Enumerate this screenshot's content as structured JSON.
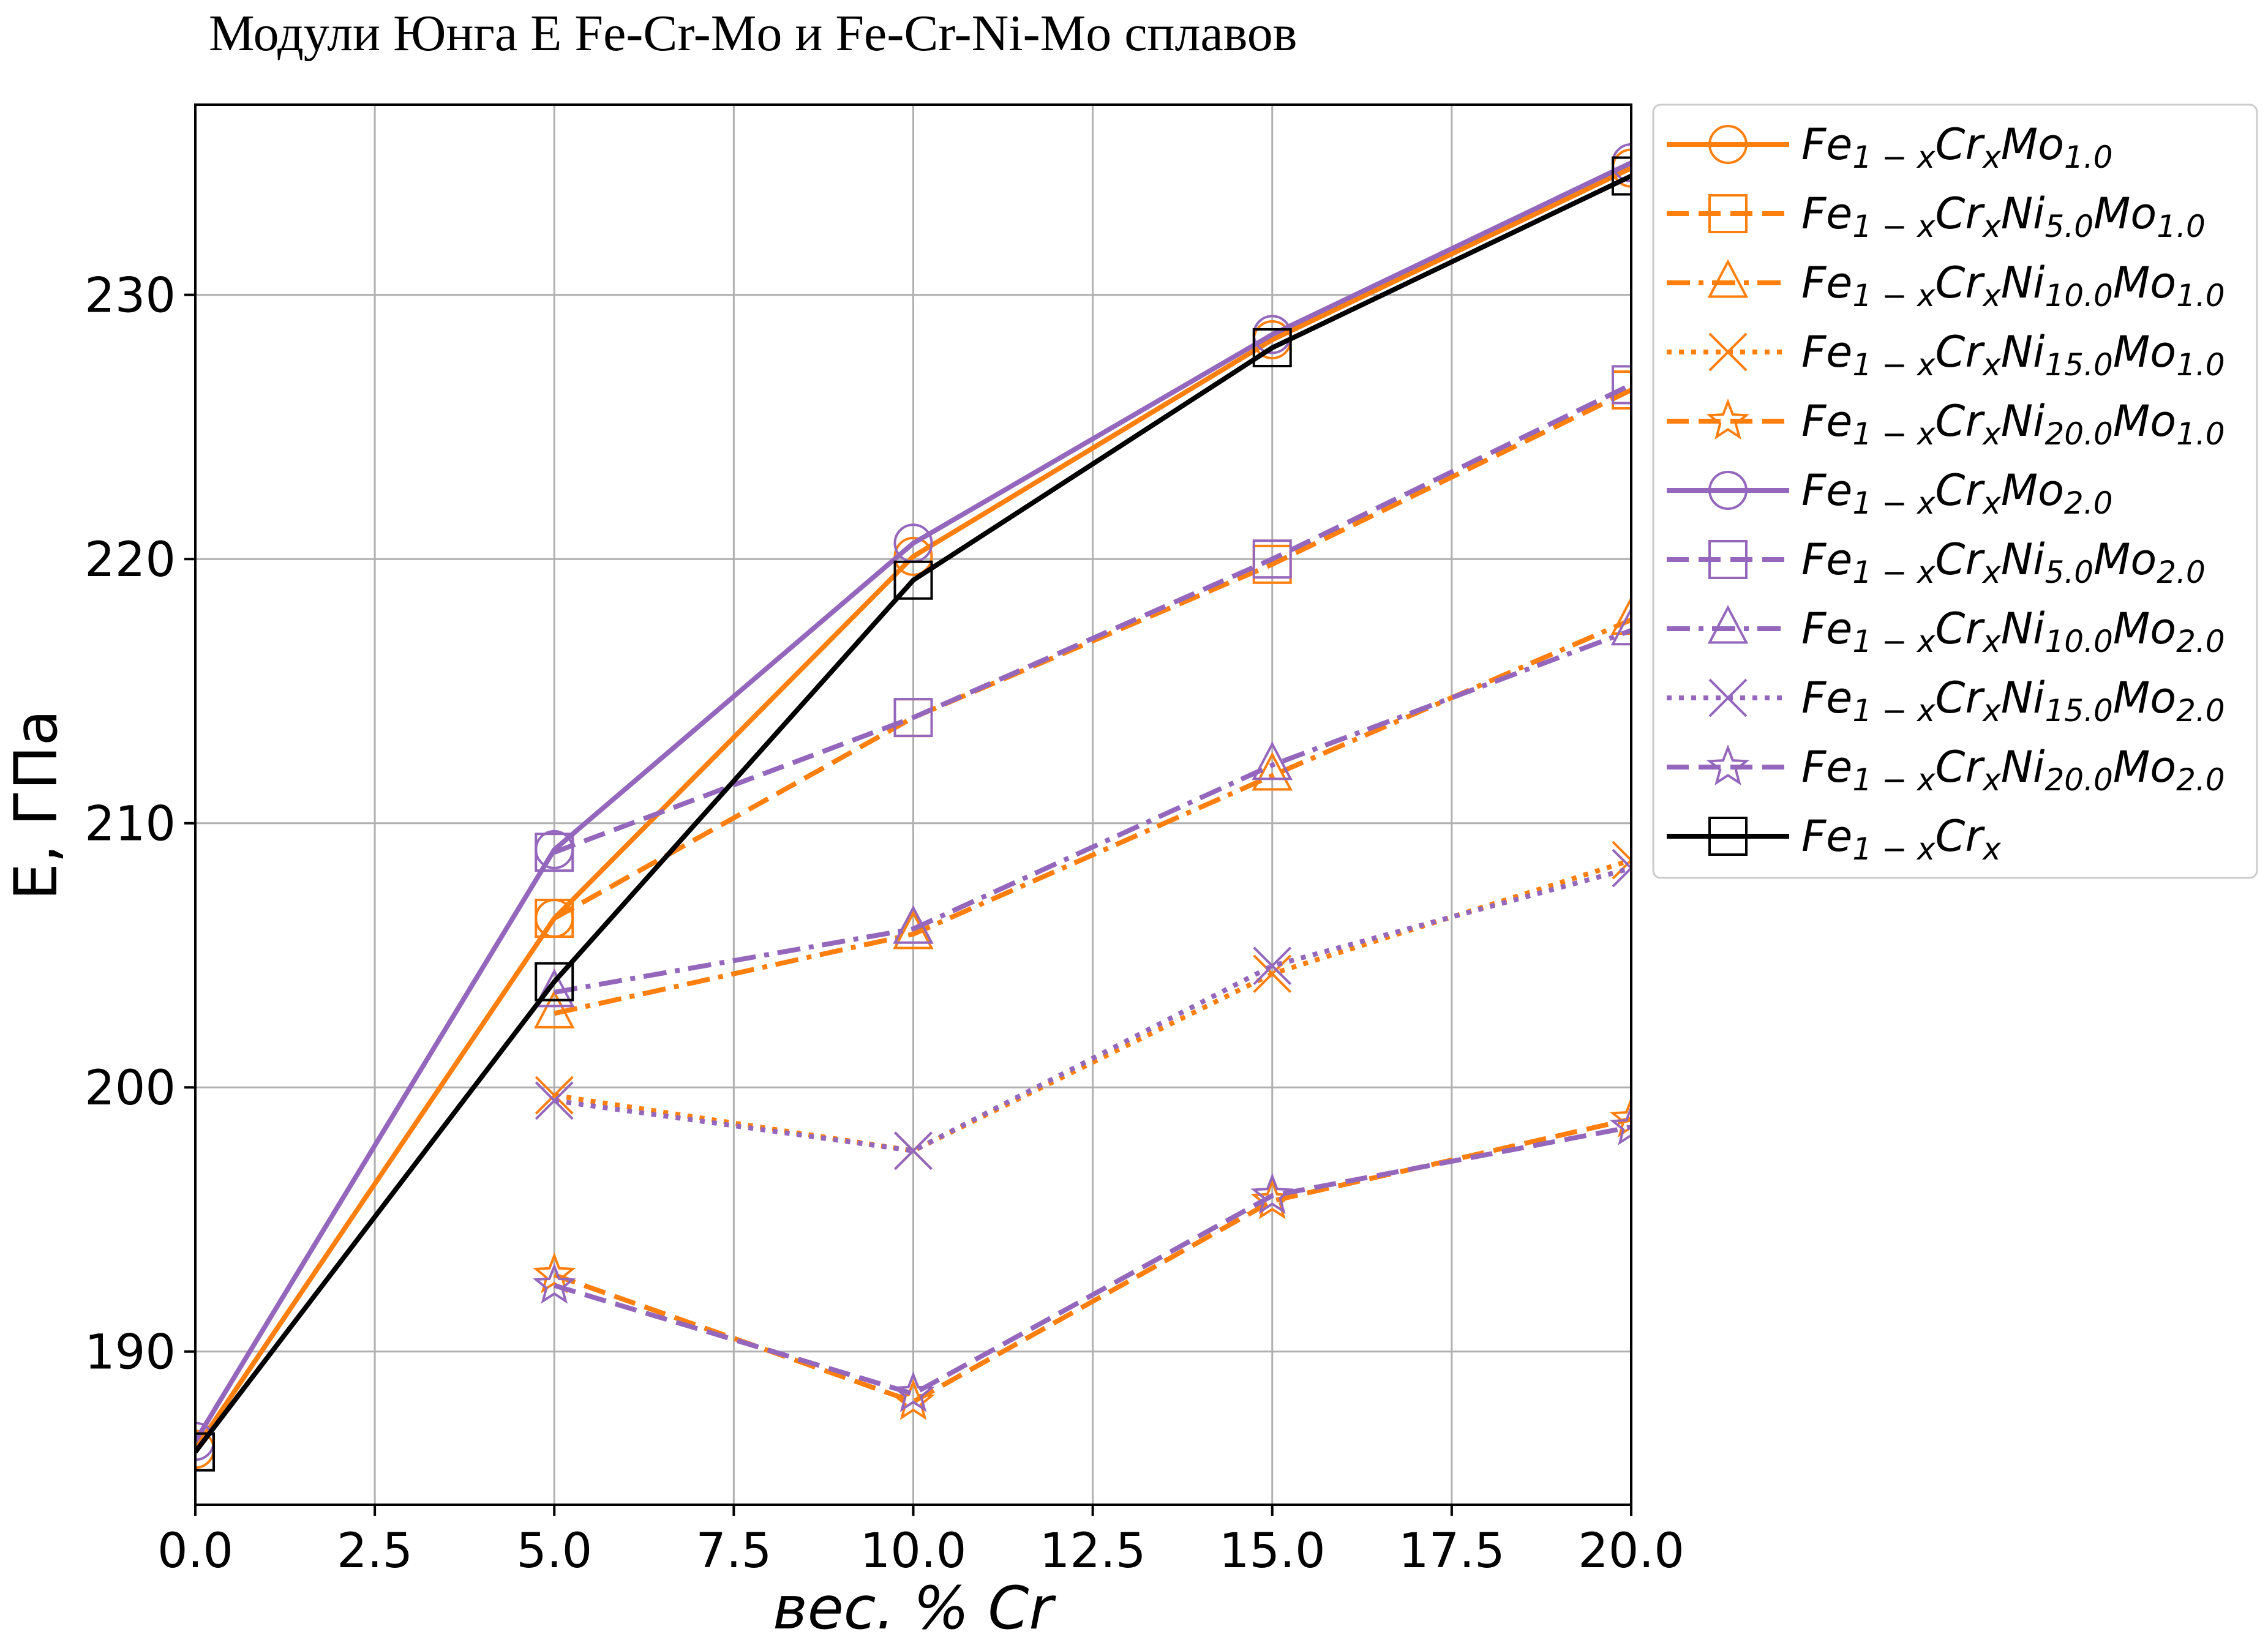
{
  "chart_data": {
    "type": "line",
    "title": "Модули Юнга E Fe-Cr-Mo и Fe-Cr-Ni-Mo сплавов",
    "xlabel": "вес. % Cr",
    "ylabel": "E, ГПа",
    "xlim": [
      0,
      20
    ],
    "ylim": [
      184.2,
      237.2
    ],
    "xticks": [
      "0.0",
      "2.5",
      "5.0",
      "7.5",
      "10.0",
      "12.5",
      "15.0",
      "17.5",
      "20.0"
    ],
    "yticks": [
      "190",
      "200",
      "210",
      "220",
      "230"
    ],
    "grid": true,
    "legend_position": "outside-right-top",
    "series": [
      {
        "name": "Fe1−xCrxMo1.0",
        "color": "#ff7f0e",
        "marker": "circle",
        "dash": "solid",
        "x": [
          0,
          5,
          10,
          15,
          20
        ],
        "y": [
          186.3,
          206.4,
          220.1,
          228.3,
          234.8
        ]
      },
      {
        "name": "Fe1−xCrxNi5.0Mo1.0",
        "color": "#ff7f0e",
        "marker": "square",
        "dash": "dashed",
        "x": [
          5,
          10,
          15,
          20
        ],
        "y": [
          206.4,
          214.0,
          219.8,
          226.4
        ]
      },
      {
        "name": "Fe1−xCrxNi10.0Mo1.0",
        "color": "#ff7f0e",
        "marker": "triangle",
        "dash": "dashdot",
        "x": [
          5,
          10,
          15,
          20
        ],
        "y": [
          202.8,
          205.8,
          211.8,
          217.7
        ]
      },
      {
        "name": "Fe1−xCrxNi15.0Mo1.0",
        "color": "#ff7f0e",
        "marker": "x",
        "dash": "dotted",
        "x": [
          5,
          10,
          15,
          20
        ],
        "y": [
          199.7,
          197.6,
          204.3,
          208.6
        ]
      },
      {
        "name": "Fe1−xCrxNi20.0Mo1.0",
        "color": "#ff7f0e",
        "marker": "star",
        "dash": "dashed",
        "x": [
          5,
          10,
          15,
          20
        ],
        "y": [
          192.9,
          188.1,
          195.7,
          198.8
        ]
      },
      {
        "name": "Fe1−xCrxMo2.0",
        "color": "#9467bd",
        "marker": "circle",
        "dash": "solid",
        "x": [
          0,
          5,
          10,
          15,
          20
        ],
        "y": [
          186.6,
          209.0,
          220.6,
          228.5,
          235.0
        ]
      },
      {
        "name": "Fe1−xCrxNi5.0Mo2.0",
        "color": "#9467bd",
        "marker": "square",
        "dash": "dashed",
        "x": [
          5,
          10,
          15,
          20
        ],
        "y": [
          208.9,
          214.0,
          220.0,
          226.6
        ]
      },
      {
        "name": "Fe1−xCrxNi10.0Mo2.0",
        "color": "#9467bd",
        "marker": "triangle",
        "dash": "dashdot",
        "x": [
          5,
          10,
          15,
          20
        ],
        "y": [
          203.6,
          206.0,
          212.2,
          217.3
        ]
      },
      {
        "name": "Fe1−xCrxNi15.0Mo2.0",
        "color": "#9467bd",
        "marker": "x",
        "dash": "dotted",
        "x": [
          5,
          10,
          15,
          20
        ],
        "y": [
          199.5,
          197.6,
          204.6,
          208.3
        ]
      },
      {
        "name": "Fe1−xCrxNi20.0Mo2.0",
        "color": "#9467bd",
        "marker": "star",
        "dash": "dashed",
        "x": [
          5,
          10,
          15,
          20
        ],
        "y": [
          192.5,
          188.4,
          195.9,
          198.5
        ]
      },
      {
        "name": "Fe1−xCrx",
        "color": "#000000",
        "marker": "square",
        "dash": "solid",
        "x": [
          0,
          5,
          10,
          15,
          20
        ],
        "y": [
          186.2,
          204.0,
          219.2,
          228.0,
          234.5
        ]
      }
    ],
    "legend": [
      {
        "base": "Fe",
        "parts": [
          [
            "sub",
            "1 − x"
          ],
          [
            "main",
            "Cr"
          ],
          [
            "sub",
            "x"
          ],
          [
            "main",
            "Mo"
          ],
          [
            "sub",
            "1.0"
          ]
        ]
      },
      {
        "base": "Fe",
        "parts": [
          [
            "sub",
            "1 − x"
          ],
          [
            "main",
            "Cr"
          ],
          [
            "sub",
            "x"
          ],
          [
            "main",
            "Ni"
          ],
          [
            "sub",
            "5.0"
          ],
          [
            "main",
            "Mo"
          ],
          [
            "sub",
            "1.0"
          ]
        ]
      },
      {
        "base": "Fe",
        "parts": [
          [
            "sub",
            "1 − x"
          ],
          [
            "main",
            "Cr"
          ],
          [
            "sub",
            "x"
          ],
          [
            "main",
            "Ni"
          ],
          [
            "sub",
            "10.0"
          ],
          [
            "main",
            "Mo"
          ],
          [
            "sub",
            "1.0"
          ]
        ]
      },
      {
        "base": "Fe",
        "parts": [
          [
            "sub",
            "1 − x"
          ],
          [
            "main",
            "Cr"
          ],
          [
            "sub",
            "x"
          ],
          [
            "main",
            "Ni"
          ],
          [
            "sub",
            "15.0"
          ],
          [
            "main",
            "Mo"
          ],
          [
            "sub",
            "1.0"
          ]
        ]
      },
      {
        "base": "Fe",
        "parts": [
          [
            "sub",
            "1 − x"
          ],
          [
            "main",
            "Cr"
          ],
          [
            "sub",
            "x"
          ],
          [
            "main",
            "Ni"
          ],
          [
            "sub",
            "20.0"
          ],
          [
            "main",
            "Mo"
          ],
          [
            "sub",
            "1.0"
          ]
        ]
      },
      {
        "base": "Fe",
        "parts": [
          [
            "sub",
            "1 − x"
          ],
          [
            "main",
            "Cr"
          ],
          [
            "sub",
            "x"
          ],
          [
            "main",
            "Mo"
          ],
          [
            "sub",
            "2.0"
          ]
        ]
      },
      {
        "base": "Fe",
        "parts": [
          [
            "sub",
            "1 − x"
          ],
          [
            "main",
            "Cr"
          ],
          [
            "sub",
            "x"
          ],
          [
            "main",
            "Ni"
          ],
          [
            "sub",
            "5.0"
          ],
          [
            "main",
            "Mo"
          ],
          [
            "sub",
            "2.0"
          ]
        ]
      },
      {
        "base": "Fe",
        "parts": [
          [
            "sub",
            "1 − x"
          ],
          [
            "main",
            "Cr"
          ],
          [
            "sub",
            "x"
          ],
          [
            "main",
            "Ni"
          ],
          [
            "sub",
            "10.0"
          ],
          [
            "main",
            "Mo"
          ],
          [
            "sub",
            "2.0"
          ]
        ]
      },
      {
        "base": "Fe",
        "parts": [
          [
            "sub",
            "1 − x"
          ],
          [
            "main",
            "Cr"
          ],
          [
            "sub",
            "x"
          ],
          [
            "main",
            "Ni"
          ],
          [
            "sub",
            "15.0"
          ],
          [
            "main",
            "Mo"
          ],
          [
            "sub",
            "2.0"
          ]
        ]
      },
      {
        "base": "Fe",
        "parts": [
          [
            "sub",
            "1 − x"
          ],
          [
            "main",
            "Cr"
          ],
          [
            "sub",
            "x"
          ],
          [
            "main",
            "Ni"
          ],
          [
            "sub",
            "20.0"
          ],
          [
            "main",
            "Mo"
          ],
          [
            "sub",
            "2.0"
          ]
        ]
      },
      {
        "base": "Fe",
        "parts": [
          [
            "sub",
            "1 − x"
          ],
          [
            "main",
            "Cr"
          ],
          [
            "sub",
            "x"
          ]
        ]
      }
    ]
  }
}
